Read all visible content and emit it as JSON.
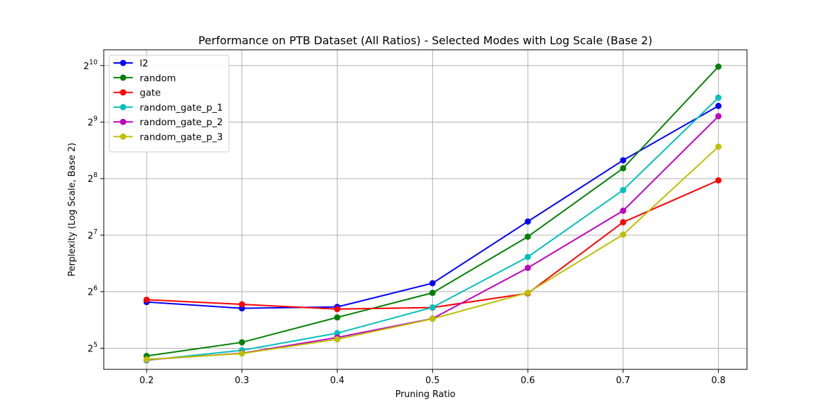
{
  "chart_data": {
    "type": "line",
    "title": "Performance on PTB Dataset (All Ratios) - Selected Modes with Log Scale (Base 2)",
    "xlabel": "Pruning Ratio",
    "ylabel": "Perplexity (Log Scale, Base 2)",
    "x": [
      0.2,
      0.3,
      0.4,
      0.5,
      0.6,
      0.7,
      0.8
    ],
    "x_tick_labels": [
      "0.2",
      "0.3",
      "0.4",
      "0.5",
      "0.6",
      "0.7",
      "0.8"
    ],
    "y_scale": "log2",
    "y_ticks": [
      {
        "base": "2",
        "exp": "5",
        "value": 32
      },
      {
        "base": "2",
        "exp": "6",
        "value": 64
      },
      {
        "base": "2",
        "exp": "7",
        "value": 128
      },
      {
        "base": "2",
        "exp": "8",
        "value": 256
      },
      {
        "base": "2",
        "exp": "9",
        "value": 512
      },
      {
        "base": "2",
        "exp": "10",
        "value": 1024
      }
    ],
    "xlim": [
      0.155,
      0.83
    ],
    "ylim": [
      24.7,
      1242
    ],
    "grid": true,
    "legend_position": "top-left",
    "series": [
      {
        "name": "l2",
        "color": "#0000ff",
        "values": [
          56.4,
          52.2,
          53.1,
          71.0,
          151.3,
          320.6,
          624.1
        ]
      },
      {
        "name": "random",
        "color": "#008000",
        "values": [
          29.1,
          34.4,
          46.7,
          63.1,
          125.6,
          290.6,
          1010.6
        ]
      },
      {
        "name": "gate",
        "color": "#ff0000",
        "values": [
          58.0,
          54.8,
          51.7,
          52.7,
          62.7,
          150.0,
          250.6
        ]
      },
      {
        "name": "random_gate_p_1",
        "color": "#00bfbf",
        "values": [
          27.6,
          31.2,
          38.5,
          52.8,
          98.0,
          222.5,
          690.9
        ]
      },
      {
        "name": "random_gate_p_2",
        "color": "#bf00bf",
        "values": [
          27.8,
          30.1,
          36.5,
          46.0,
          85.7,
          172.7,
          550.0
        ]
      },
      {
        "name": "random_gate_p_3",
        "color": "#bfbf00",
        "values": [
          27.9,
          30.0,
          35.7,
          45.9,
          63.2,
          128.9,
          378.6
        ]
      }
    ]
  }
}
